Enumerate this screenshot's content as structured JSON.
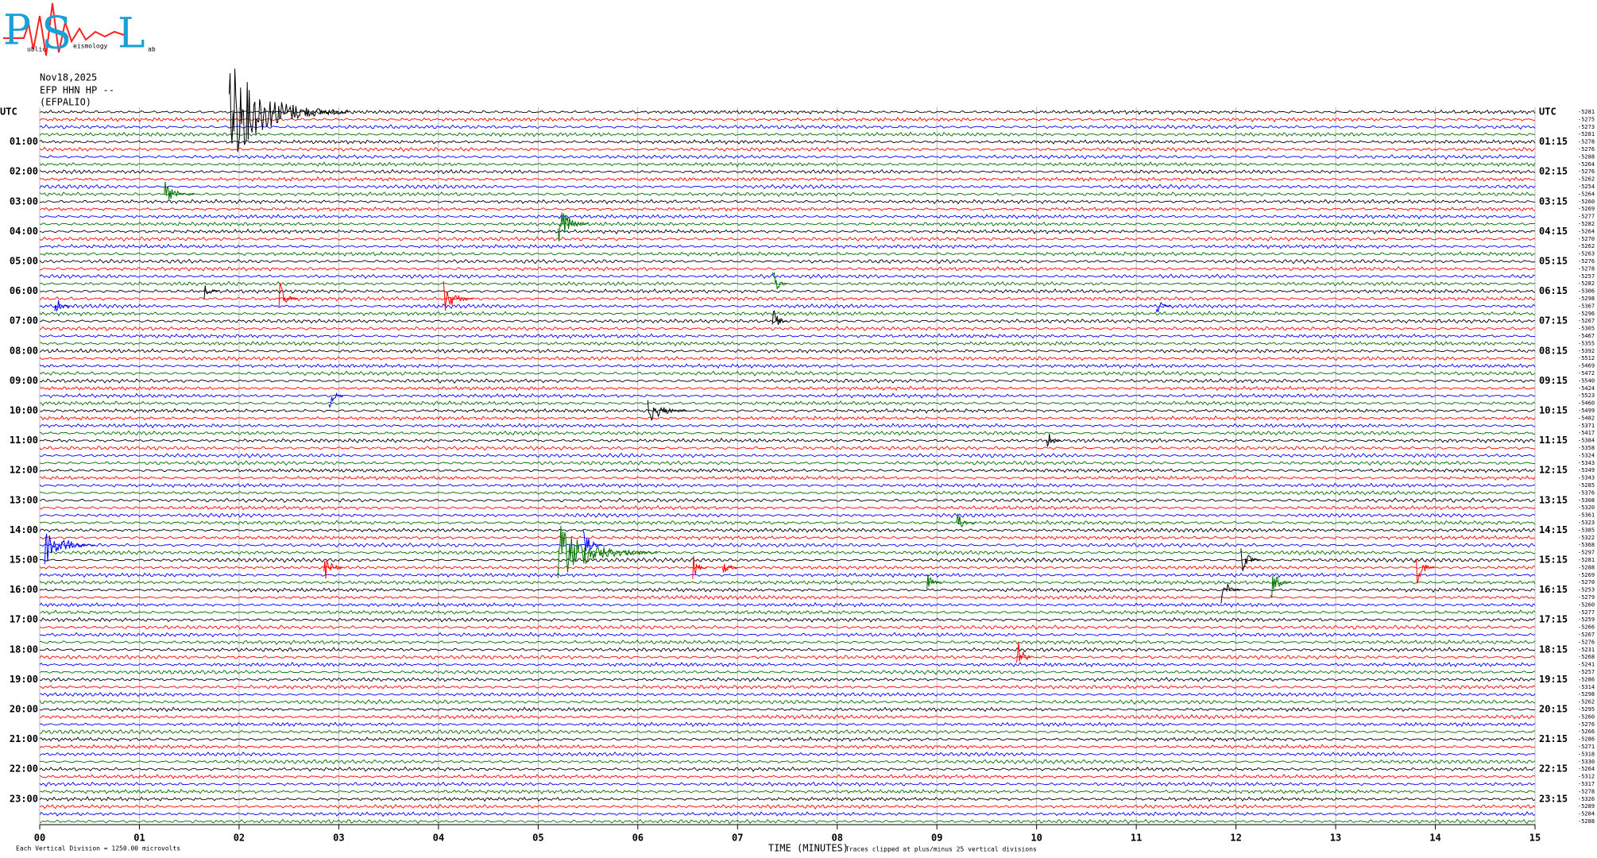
{
  "chart_data": {
    "type": "helicorder",
    "logo": {
      "p": "P",
      "s": "S",
      "l": "L",
      "words": [
        "ublic",
        "eismology",
        "ab"
      ]
    },
    "date": "Nov18,2025",
    "station": "EFP HHN HP --",
    "location": "(EFPALIO)",
    "left_labels": [
      "UTC",
      "01:00",
      "02:00",
      "03:00",
      "04:00",
      "05:00",
      "06:00",
      "07:00",
      "08:00",
      "09:00",
      "10:00",
      "11:00",
      "12:00",
      "13:00",
      "14:00",
      "15:00",
      "16:00",
      "17:00",
      "18:00",
      "19:00",
      "20:00",
      "21:00",
      "22:00",
      "23:00"
    ],
    "right_labels": [
      "UTC",
      "01:15",
      "02:15",
      "03:15",
      "04:15",
      "05:15",
      "06:15",
      "07:15",
      "08:15",
      "09:15",
      "10:15",
      "11:15",
      "12:15",
      "13:15",
      "14:15",
      "15:15",
      "16:15",
      "17:15",
      "18:15",
      "19:15",
      "20:15",
      "21:15",
      "22:15",
      "23:15"
    ],
    "trace_offsets": [
      -5281,
      -5275,
      -5273,
      -5281,
      -5278,
      -5276,
      -5288,
      -5264,
      -5276,
      -5262,
      -5254,
      -5264,
      -5260,
      -5269,
      -5277,
      -5282,
      -5264,
      -5270,
      -5262,
      -5263,
      -5276,
      -5278,
      -5257,
      -5282,
      -5306,
      -5298,
      -5367,
      -5296,
      -5267,
      -5305,
      -5467,
      -5355,
      -5392,
      -5512,
      -5469,
      -5472,
      -5540,
      -5424,
      -5523,
      -5460,
      -5499,
      -5482,
      -5371,
      -5417,
      -5384,
      -5358,
      -5324,
      -5343,
      -5349,
      -5343,
      -5285,
      -5376,
      -5308,
      -5320,
      -5361,
      -5323,
      -5385,
      -5322,
      -5368,
      -5297,
      -5281,
      -5288,
      -5269,
      -5270,
      -5253,
      -5279,
      -5260,
      -5277,
      -5259,
      -5266,
      -5267,
      -5276,
      -5231,
      -5268,
      -5241,
      -5257,
      -5286,
      -5314,
      -5298,
      -5262,
      -5295,
      -5260,
      -5276,
      -5266,
      -5286,
      -5271,
      -5318,
      -5330,
      -5264,
      -5312,
      -5317,
      -5278,
      -5326,
      -5289,
      -5284,
      -5288
    ],
    "trace_colors": [
      "#000000",
      "#ff0000",
      "#0000ff",
      "#007000"
    ],
    "events": [
      {
        "trace": 0,
        "minute": 1.9,
        "amplitude": 7,
        "duration": 1.2
      },
      {
        "trace": 11,
        "minute": 1.25,
        "amplitude": 2,
        "duration": 0.3
      },
      {
        "trace": 15,
        "minute": 5.2,
        "amplitude": 3,
        "duration": 0.3
      },
      {
        "trace": 24,
        "minute": 1.65,
        "amplitude": 1.5,
        "duration": 0.15
      },
      {
        "trace": 25,
        "minute": 2.4,
        "amplitude": 2.5,
        "duration": 0.2
      },
      {
        "trace": 25,
        "minute": 4.05,
        "amplitude": 2.5,
        "duration": 0.3
      },
      {
        "trace": 23,
        "minute": 7.35,
        "amplitude": 2.5,
        "duration": 0.15
      },
      {
        "trace": 26,
        "minute": 0.15,
        "amplitude": 2,
        "duration": 0.15
      },
      {
        "trace": 26,
        "minute": 11.2,
        "amplitude": 1.5,
        "duration": 0.15
      },
      {
        "trace": 28,
        "minute": 7.35,
        "amplitude": 2.5,
        "duration": 0.15
      },
      {
        "trace": 38,
        "minute": 2.9,
        "amplitude": 2,
        "duration": 0.15
      },
      {
        "trace": 40,
        "minute": 6.1,
        "amplitude": 2,
        "duration": 0.4
      },
      {
        "trace": 44,
        "minute": 10.1,
        "amplitude": 2,
        "duration": 0.15
      },
      {
        "trace": 55,
        "minute": 9.2,
        "amplitude": 1.5,
        "duration": 0.2
      },
      {
        "trace": 58,
        "minute": 0.05,
        "amplitude": 3,
        "duration": 0.5
      },
      {
        "trace": 59,
        "minute": 5.2,
        "amplitude": 4,
        "duration": 1.0
      },
      {
        "trace": 58,
        "minute": 5.45,
        "amplitude": 2.5,
        "duration": 0.2
      },
      {
        "trace": 61,
        "minute": 2.85,
        "amplitude": 2.5,
        "duration": 0.2
      },
      {
        "trace": 61,
        "minute": 6.55,
        "amplitude": 2,
        "duration": 0.15
      },
      {
        "trace": 61,
        "minute": 6.85,
        "amplitude": 2,
        "duration": 0.15
      },
      {
        "trace": 60,
        "minute": 12.05,
        "amplitude": 2.5,
        "duration": 0.2
      },
      {
        "trace": 63,
        "minute": 8.9,
        "amplitude": 1.5,
        "duration": 0.15
      },
      {
        "trace": 64,
        "minute": 11.85,
        "amplitude": 2.5,
        "duration": 0.2
      },
      {
        "trace": 63,
        "minute": 12.35,
        "amplitude": 2.5,
        "duration": 0.2
      },
      {
        "trace": 61,
        "minute": 13.8,
        "amplitude": 3,
        "duration": 0.2
      },
      {
        "trace": 73,
        "minute": 9.8,
        "amplitude": 4,
        "duration": 0.15
      }
    ],
    "xlim": [
      0,
      15
    ],
    "xticks": [
      {
        "value": 0,
        "label": "00"
      },
      {
        "value": 1,
        "label": "01"
      },
      {
        "value": 2,
        "label": "02"
      },
      {
        "value": 3,
        "label": "03"
      },
      {
        "value": 4,
        "label": "04"
      },
      {
        "value": 5,
        "label": "05"
      },
      {
        "value": 6,
        "label": "06"
      },
      {
        "value": 7,
        "label": "07"
      },
      {
        "value": 8,
        "label": "08"
      },
      {
        "value": 9,
        "label": "09"
      },
      10,
      11,
      12,
      13,
      14,
      15
    ],
    "grid": true,
    "xlabel": "TIME (MINUTES)",
    "scale_note": "Each Vertical Division = 1250.00 microvolts",
    "clip_note": "Traces clipped at plus/minus 25 vertical divisions"
  }
}
